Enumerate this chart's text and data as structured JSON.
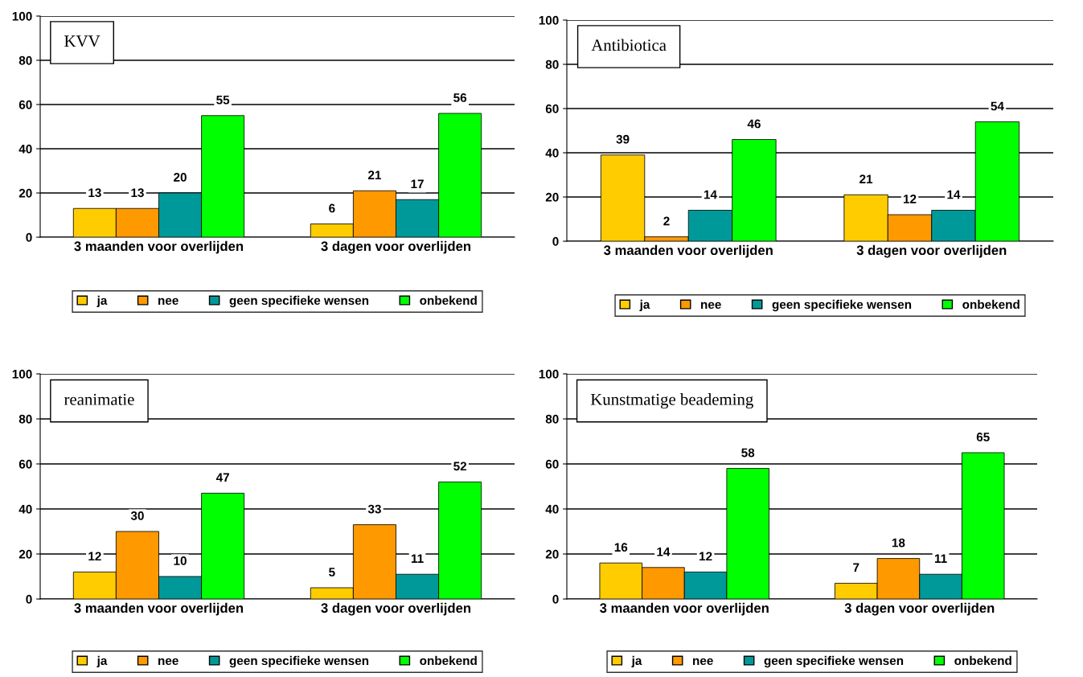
{
  "chart_data": [
    {
      "type": "bar",
      "title": "KVV",
      "categories": [
        "3 maanden voor overlijden",
        "3 dagen voor overlijden"
      ],
      "ylim": [
        0,
        100
      ],
      "yticks": [
        0,
        20,
        40,
        60,
        80,
        100
      ],
      "grid": "y",
      "legend": "bottom",
      "data_labels": true,
      "series": [
        {
          "name": "ja",
          "color": "#ffcc00",
          "values": [
            13,
            6
          ]
        },
        {
          "name": "nee",
          "color": "#ff9900",
          "values": [
            13,
            21
          ]
        },
        {
          "name": "geen specifieke wensen",
          "color": "#009999",
          "values": [
            20,
            17
          ]
        },
        {
          "name": "onbekend",
          "color": "#00ff00",
          "values": [
            55,
            56
          ]
        }
      ]
    },
    {
      "type": "bar",
      "title": "Antibiotica",
      "categories": [
        "3 maanden voor overlijden",
        "3 dagen voor overlijden"
      ],
      "ylim": [
        0,
        100
      ],
      "yticks": [
        0,
        20,
        40,
        60,
        80,
        100
      ],
      "grid": "y",
      "legend": "bottom",
      "data_labels": true,
      "series": [
        {
          "name": "ja",
          "color": "#ffcc00",
          "values": [
            39,
            21
          ]
        },
        {
          "name": "nee",
          "color": "#ff9900",
          "values": [
            2,
            12
          ]
        },
        {
          "name": "geen specifieke wensen",
          "color": "#009999",
          "values": [
            14,
            14
          ]
        },
        {
          "name": "onbekend",
          "color": "#00ff00",
          "values": [
            46,
            54
          ]
        }
      ]
    },
    {
      "type": "bar",
      "title": "reanimatie",
      "categories": [
        "3 maanden voor overlijden",
        "3 dagen voor overlijden"
      ],
      "ylim": [
        0,
        100
      ],
      "yticks": [
        0,
        20,
        40,
        60,
        80,
        100
      ],
      "grid": "y",
      "legend": "bottom",
      "data_labels": true,
      "series": [
        {
          "name": "ja",
          "color": "#ffcc00",
          "values": [
            12,
            5
          ]
        },
        {
          "name": "nee",
          "color": "#ff9900",
          "values": [
            30,
            33
          ]
        },
        {
          "name": "geen specifieke wensen",
          "color": "#009999",
          "values": [
            10,
            11
          ]
        },
        {
          "name": "onbekend",
          "color": "#00ff00",
          "values": [
            47,
            52
          ]
        }
      ]
    },
    {
      "type": "bar",
      "title": "Kunstmatige beademing",
      "categories": [
        "3 maanden voor overlijden",
        "3 dagen voor overlijden"
      ],
      "ylim": [
        0,
        100
      ],
      "yticks": [
        0,
        20,
        40,
        60,
        80,
        100
      ],
      "grid": "y",
      "legend": "bottom",
      "data_labels": true,
      "series": [
        {
          "name": "ja",
          "color": "#ffcc00",
          "values": [
            16,
            7
          ]
        },
        {
          "name": "nee",
          "color": "#ff9900",
          "values": [
            14,
            18
          ]
        },
        {
          "name": "geen specifieke wensen",
          "color": "#009999",
          "values": [
            12,
            11
          ]
        },
        {
          "name": "onbekend",
          "color": "#00ff00",
          "values": [
            58,
            65
          ]
        }
      ]
    }
  ]
}
